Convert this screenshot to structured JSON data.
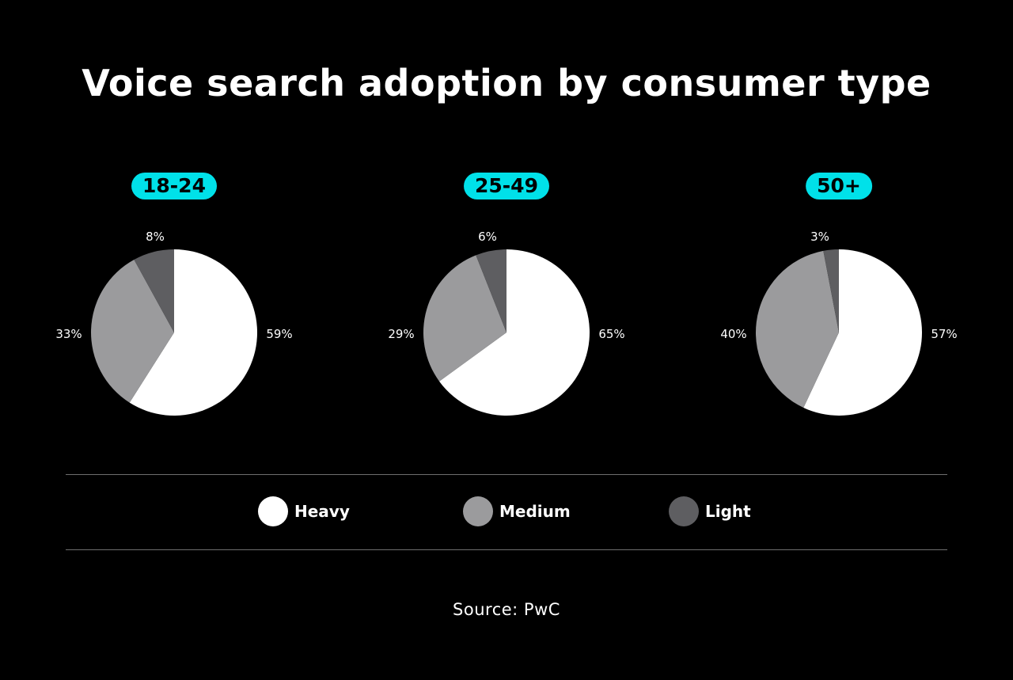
{
  "title": "Voice search adoption by consumer type",
  "source": "Source: PwC",
  "colors": {
    "background": "#000000",
    "heavy": "#ffffff",
    "medium": "#9b9b9d",
    "light": "#5e5e61",
    "badge": "#00e1e9"
  },
  "chart_data": [
    {
      "type": "pie",
      "title": "18-24",
      "categories": [
        "Heavy",
        "Medium",
        "Light"
      ],
      "values": [
        59,
        33,
        8
      ],
      "labels": [
        "59%",
        "33%",
        "8%"
      ]
    },
    {
      "type": "pie",
      "title": "25-49",
      "categories": [
        "Heavy",
        "Medium",
        "Light"
      ],
      "values": [
        65,
        29,
        6
      ],
      "labels": [
        "65%",
        "29%",
        "6%"
      ]
    },
    {
      "type": "pie",
      "title": "50+",
      "categories": [
        "Heavy",
        "Medium",
        "Light"
      ],
      "values": [
        57,
        40,
        3
      ],
      "labels": [
        "57%",
        "40%",
        "3%"
      ]
    }
  ],
  "legend": [
    {
      "label": "Heavy",
      "color": "#ffffff"
    },
    {
      "label": "Medium",
      "color": "#9b9b9d"
    },
    {
      "label": "Light",
      "color": "#5e5e61"
    }
  ]
}
